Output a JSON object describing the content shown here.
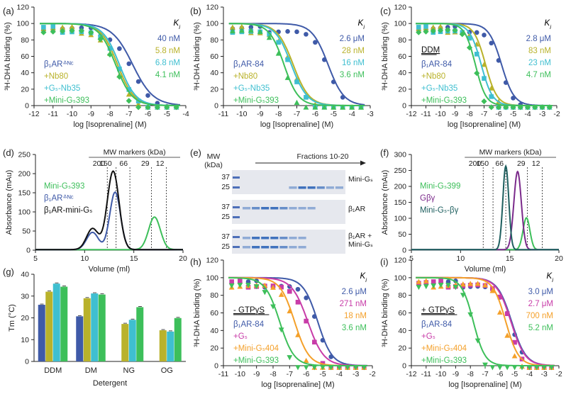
{
  "colors": {
    "blue": "#3f5aa8",
    "olive": "#b9b22b",
    "cyan": "#3fbfd0",
    "green": "#3dbf5a",
    "black": "#111111",
    "purple": "#7b2a8b",
    "darkteal": "#1e5f5f",
    "magenta": "#c83ca8",
    "orange": "#f4a02a"
  },
  "chart_data": [
    {
      "id": "a",
      "type": "line",
      "panel_label": "(a)",
      "xlabel": "log [Isoprenaline] (M)",
      "ylabel": "³H-DHA binding (%)",
      "xlim": [
        -12,
        -4
      ],
      "ylim": [
        0,
        120
      ],
      "xticks": [
        -12,
        -11,
        -10,
        -9,
        -8,
        -7,
        -6,
        -5,
        -4
      ],
      "yticks": [
        0,
        20,
        40,
        60,
        80,
        100,
        120
      ],
      "ki_header": "Ki",
      "condition": "",
      "series": [
        {
          "name": "β1AR ΔNC",
          "label": "β₁ARᐞᴺᶜ",
          "color": "blue",
          "ki": "40 nM",
          "logIC50": -6.8,
          "hill": 0.8,
          "marker": "circle"
        },
        {
          "name": "+Nb80",
          "label": "+Nb80",
          "color": "olive",
          "ki": "5.8 nM",
          "logIC50": -7.6,
          "hill": 1.0,
          "marker": "triangle"
        },
        {
          "name": "+Gs-Nb35",
          "label": "+Gₛ-Nb35",
          "color": "cyan",
          "ki": "6.8 nM",
          "logIC50": -7.5,
          "hill": 1.0,
          "marker": "square"
        },
        {
          "name": "+Mini-Gs393",
          "label": "+Mini-Gₛ393",
          "color": "green",
          "ki": "4.1 nM",
          "logIC50": -7.7,
          "hill": 1.0,
          "marker": "diamond"
        }
      ]
    },
    {
      "id": "b",
      "type": "line",
      "panel_label": "(b)",
      "xlabel": "log [Isoprenaline] (M)",
      "ylabel": "³H-DHA binding (%)",
      "xlim": [
        -11,
        -3
      ],
      "ylim": [
        0,
        120
      ],
      "xticks": [
        -11,
        -10,
        -9,
        -8,
        -7,
        -6,
        -5,
        -4,
        -3
      ],
      "yticks": [
        0,
        20,
        40,
        60,
        80,
        100,
        120
      ],
      "ki_header": "Ki",
      "condition": "",
      "series": [
        {
          "name": "β1AR-84",
          "label": "β₁AR-84",
          "color": "blue",
          "ki": "2.6 μM",
          "logIC50": -5.3,
          "hill": 1.0,
          "marker": "circle"
        },
        {
          "name": "+Nb80",
          "label": "+Nb80",
          "color": "olive",
          "ki": "28 nM",
          "logIC50": -7.2,
          "hill": 1.0,
          "marker": "triangle"
        },
        {
          "name": "+Gs-Nb35",
          "label": "+Gₛ-Nb35",
          "color": "cyan",
          "ki": "16 nM",
          "logIC50": -7.3,
          "hill": 1.0,
          "marker": "square"
        },
        {
          "name": "+Mini-Gs393",
          "label": "+Mini-Gₛ393",
          "color": "green",
          "ki": "3.6 nM",
          "logIC50": -7.7,
          "hill": 1.1,
          "marker": "triangle"
        }
      ]
    },
    {
      "id": "c",
      "type": "line",
      "panel_label": "(c)",
      "xlabel": "log [Isoprenaline] (M)",
      "ylabel": "³H-DHA binding (%)",
      "xlim": [
        -12,
        -2
      ],
      "ylim": [
        0,
        120
      ],
      "xticks": [
        -12,
        -11,
        -10,
        -9,
        -8,
        -7,
        -6,
        -5,
        -4,
        -3,
        -2
      ],
      "yticks": [
        0,
        20,
        40,
        60,
        80,
        100,
        120
      ],
      "ki_header": "Ki",
      "condition": "DDM",
      "series": [
        {
          "name": "β1AR-84",
          "label": "β₁AR-84",
          "color": "blue",
          "ki": "2.8 μM",
          "logIC50": -5.8,
          "hill": 1.0,
          "marker": "circle"
        },
        {
          "name": "+Nb80",
          "label": "+Nb80",
          "color": "olive",
          "ki": "83 nM",
          "logIC50": -6.9,
          "hill": 1.1,
          "marker": "triangle"
        },
        {
          "name": "+Gs-Nb35",
          "label": "+Gₛ-Nb35",
          "color": "cyan",
          "ki": "23 nM",
          "logIC50": -7.2,
          "hill": 1.1,
          "marker": "square"
        },
        {
          "name": "+Mini-Gs393",
          "label": "+Mini-Gₛ393",
          "color": "green",
          "ki": "4.7 nM",
          "logIC50": -7.6,
          "hill": 1.2,
          "marker": "diamond"
        }
      ]
    },
    {
      "id": "d",
      "type": "line",
      "panel_label": "(d)",
      "xlabel": "Volume (ml)",
      "ylabel": "Absorbance (mAu)",
      "xlim": [
        5,
        20
      ],
      "ylim": [
        0,
        250
      ],
      "xticks": [
        5,
        10,
        15,
        20
      ],
      "yticks": [
        0,
        50,
        100,
        150,
        200,
        250
      ],
      "mw_title": "MW markers (kDa)",
      "mw_labels": [
        "200",
        "150",
        "66",
        "29",
        "12"
      ],
      "mw_positions": [
        12.3,
        13.2,
        14.6,
        16.8,
        18.3
      ],
      "series": [
        {
          "name": "Mini-Gs393",
          "label": "Mini-Gₛ393",
          "color": "green",
          "peaks": [
            [
              17.1,
              85,
              0.6
            ]
          ]
        },
        {
          "name": "β1AR ΔNC",
          "label": "β₁ARᐞᴺᶜ",
          "color": "blue",
          "peaks": [
            [
              10.8,
              45,
              0.6
            ],
            [
              13.1,
              150,
              0.55
            ]
          ]
        },
        {
          "name": "β1AR-mini-Gs",
          "label": "β₁AR-mini-Gₛ",
          "color": "black",
          "peaks": [
            [
              10.8,
              55,
              0.6
            ],
            [
              12.9,
              205,
              0.6
            ]
          ]
        }
      ]
    },
    {
      "id": "e",
      "type": "table",
      "panel_label": "(e)",
      "mw_header": "MW",
      "mw_unit": "(kDa)",
      "fractions_label": "Fractions 10-20",
      "gels": [
        {
          "label": "Mini-Gₛ",
          "label_color": "green",
          "ladder": [
            "37",
            "25"
          ],
          "bands": [
            0,
            0,
            0,
            0,
            0,
            1,
            3,
            3,
            2,
            1,
            1
          ],
          "band_row": "low"
        },
        {
          "label": "β₁AR",
          "label_color": "blue",
          "ladder": [
            "37",
            "25"
          ],
          "bands": [
            1,
            2,
            3,
            3,
            2,
            1,
            1,
            1,
            0,
            0,
            0
          ],
          "band_row": "high"
        },
        {
          "label_line1": "β₁AR +",
          "label_line2": "Mini-Gₛ",
          "label_color": "black",
          "ladder": [
            "37",
            "25"
          ],
          "bands": [
            1,
            3,
            3,
            3,
            2,
            1,
            1,
            0,
            0,
            0,
            0
          ],
          "band_row": "both"
        }
      ]
    },
    {
      "id": "f",
      "type": "line",
      "panel_label": "(f)",
      "xlabel": "Volume (ml)",
      "ylabel": "Absorbance (mAu)",
      "xlim": [
        5,
        20
      ],
      "ylim": [
        0,
        300
      ],
      "xticks": [
        5,
        10,
        15,
        20
      ],
      "yticks": [
        0,
        50,
        100,
        150,
        200,
        250,
        300
      ],
      "mw_title": "MW markers (kDa)",
      "mw_labels": [
        "200",
        "150",
        "66",
        "29",
        "12"
      ],
      "mw_positions": [
        12.3,
        13.3,
        14.6,
        16.8,
        18.3
      ],
      "series": [
        {
          "name": "Mini-Gs399",
          "label": "Mini-Gₛ399",
          "color": "green",
          "peaks": [
            [
              16.7,
              100,
              0.35
            ]
          ]
        },
        {
          "name": "Gβγ",
          "label": "Gβγ",
          "color": "purple",
          "peaks": [
            [
              15.8,
              245,
              0.38
            ]
          ]
        },
        {
          "name": "Mini-Gs-βγ",
          "label": "Mini-Gₛ-βγ",
          "color": "darkteal",
          "peaks": [
            [
              14.6,
              262,
              0.3
            ]
          ]
        }
      ]
    },
    {
      "id": "g",
      "type": "bar",
      "panel_label": "(g)",
      "xlabel": "Detergent",
      "ylabel": "Tm (°C)",
      "ylim": [
        0,
        40
      ],
      "yticks": [
        0,
        10,
        20,
        30,
        40
      ],
      "categories": [
        "DDM",
        "DM",
        "NG",
        "OG"
      ],
      "series": [
        {
          "name": "β1AR-84",
          "color": "blue",
          "values": [
            26,
            20.7,
            0,
            0
          ]
        },
        {
          "name": "+Nb80",
          "color": "olive",
          "values": [
            32,
            29,
            17.2,
            14.3
          ]
        },
        {
          "name": "+Gs-Nb35",
          "color": "cyan",
          "values": [
            35.7,
            31.2,
            19.1,
            13.7
          ]
        },
        {
          "name": "+Mini-Gs393",
          "color": "green",
          "values": [
            34.3,
            30.7,
            24.9,
            19.9
          ]
        }
      ]
    },
    {
      "id": "h",
      "type": "line",
      "panel_label": "(h)",
      "xlabel": "log [Isoprenaline] (M)",
      "ylabel": "³H-DHA binding (%)",
      "xlim": [
        -11,
        -2
      ],
      "ylim": [
        0,
        120
      ],
      "xticks": [
        -11,
        -10,
        -9,
        -8,
        -7,
        -6,
        -5,
        -4,
        -3,
        -2
      ],
      "yticks": [
        0,
        20,
        40,
        60,
        80,
        100,
        120
      ],
      "ki_header": "Ki",
      "condition": "- GTPγS",
      "series": [
        {
          "name": "β1AR-84",
          "label": "β₁AR-84",
          "color": "blue",
          "ki": "2.6 μM",
          "logIC50": -5.3,
          "hill": 1.0,
          "marker": "circle"
        },
        {
          "name": "+Gs",
          "label": "+Gₛ",
          "color": "magenta",
          "ki": "271 nM",
          "logIC50": -5.9,
          "hill": 0.9,
          "marker": "square"
        },
        {
          "name": "+Mini-Gs404",
          "label": "+Mini-Gₛ404",
          "color": "orange",
          "ki": "18 nM",
          "logIC50": -6.7,
          "hill": 1.0,
          "marker": "triangle"
        },
        {
          "name": "+Mini-Gs393",
          "label": "+Mini-Gₛ393",
          "color": "green",
          "ki": "3.6 nM",
          "logIC50": -7.6,
          "hill": 1.0,
          "marker": "invtriangle"
        }
      ]
    },
    {
      "id": "i",
      "type": "line",
      "panel_label": "(i)",
      "xlabel": "log [Isoprenaline] (M)",
      "ylabel": "³H-DHA binding (%)",
      "xlim": [
        -12,
        -2
      ],
      "ylim": [
        0,
        120
      ],
      "xticks": [
        -12,
        -11,
        -10,
        -9,
        -8,
        -7,
        -6,
        -5,
        -4,
        -3,
        -2
      ],
      "yticks": [
        0,
        20,
        40,
        60,
        80,
        100,
        120
      ],
      "ki_header": "Ki",
      "condition": "+ GTPγS",
      "series": [
        {
          "name": "β1AR-84",
          "label": "β₁AR-84",
          "color": "blue",
          "ki": "3.0 μM",
          "logIC50": -5.2,
          "hill": 0.9,
          "marker": "circle"
        },
        {
          "name": "+Gs",
          "label": "+Gₛ",
          "color": "magenta",
          "ki": "2.7 μM",
          "logIC50": -5.25,
          "hill": 0.9,
          "marker": "square"
        },
        {
          "name": "+Mini-Gs404",
          "label": "+Mini-Gₛ404",
          "color": "orange",
          "ki": "700 nM",
          "logIC50": -5.6,
          "hill": 1.0,
          "marker": "triangle"
        },
        {
          "name": "+Mini-Gs393",
          "label": "+Mini-Gₛ393",
          "color": "green",
          "ki": "5.2 nM",
          "logIC50": -7.8,
          "hill": 1.1,
          "marker": "invtriangle"
        }
      ]
    }
  ]
}
